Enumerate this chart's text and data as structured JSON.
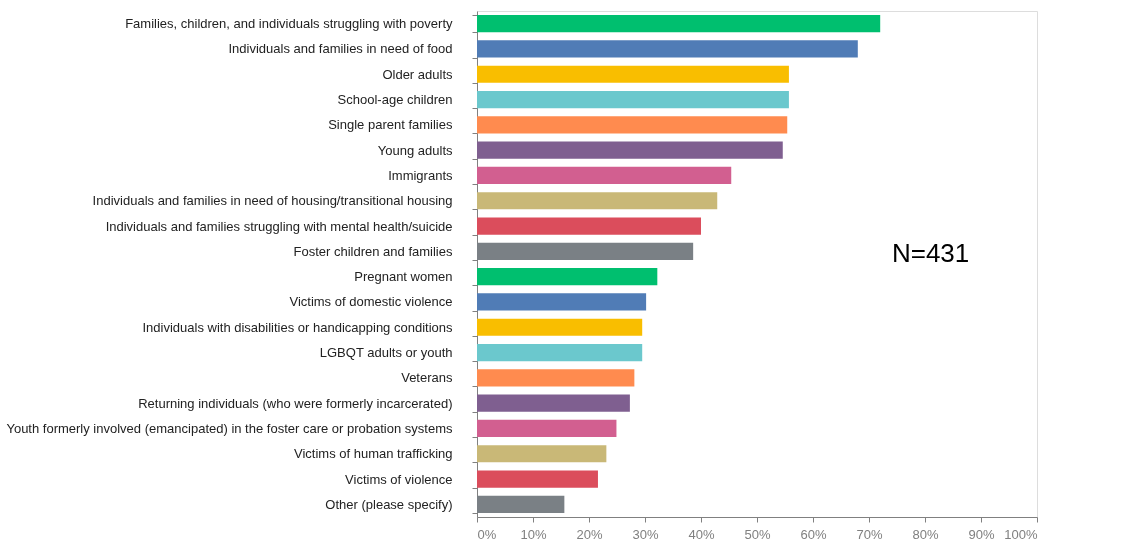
{
  "chart_data": {
    "type": "bar",
    "orientation": "horizontal",
    "categories": [
      "Families, children, and individuals struggling with poverty",
      "Individuals and families in need of food",
      "Older adults",
      "School-age children",
      "Single parent families",
      "Young adults",
      "Immigrants",
      "Individuals and families in need of housing/transitional housing",
      "Individuals and families struggling with mental health/suicide",
      "Foster children and families",
      "Pregnant women",
      "Victims of domestic violence",
      "Individuals with disabilities or handicapping conditions",
      "LGBQT adults or youth",
      "Veterans",
      "Returning individuals (who were formerly incarcerated)",
      "Youth formerly involved (emancipated) in the foster care or probation systems",
      "Victims of human trafficking",
      "Victims of violence",
      "Other (please specify)"
    ],
    "values": [
      72,
      68,
      55.7,
      55.7,
      55.4,
      54.6,
      45.4,
      42.9,
      40.0,
      38.6,
      32.2,
      30.2,
      29.5,
      29.5,
      28.1,
      27.3,
      24.9,
      23.1,
      21.6,
      15.6
    ],
    "colors": [
      "#00bf6f",
      "#507cb6",
      "#f9be00",
      "#6bc8cd",
      "#ff8b4f",
      "#7f5f90",
      "#d25f90",
      "#c9b877",
      "#db4d5c",
      "#7a8085",
      "#00bf6f",
      "#507cb6",
      "#f9be00",
      "#6bc8cd",
      "#ff8b4f",
      "#7f5f90",
      "#d25f90",
      "#c9b877",
      "#db4d5c",
      "#7a8085"
    ],
    "xlim": [
      0,
      100
    ],
    "xticks": [
      {
        "value": 0,
        "label": "0%"
      },
      {
        "value": 10,
        "label": "10%"
      },
      {
        "value": 20,
        "label": "20%"
      },
      {
        "value": 30,
        "label": "30%"
      },
      {
        "value": 40,
        "label": "40%"
      },
      {
        "value": 50,
        "label": "50%"
      },
      {
        "value": 60,
        "label": "60%"
      },
      {
        "value": 70,
        "label": "70%"
      },
      {
        "value": 80,
        "label": "80%"
      },
      {
        "value": 90,
        "label": "90%"
      },
      {
        "value": 100,
        "label": "100%"
      }
    ],
    "grid": false,
    "annotations": [
      "N=431"
    ]
  }
}
